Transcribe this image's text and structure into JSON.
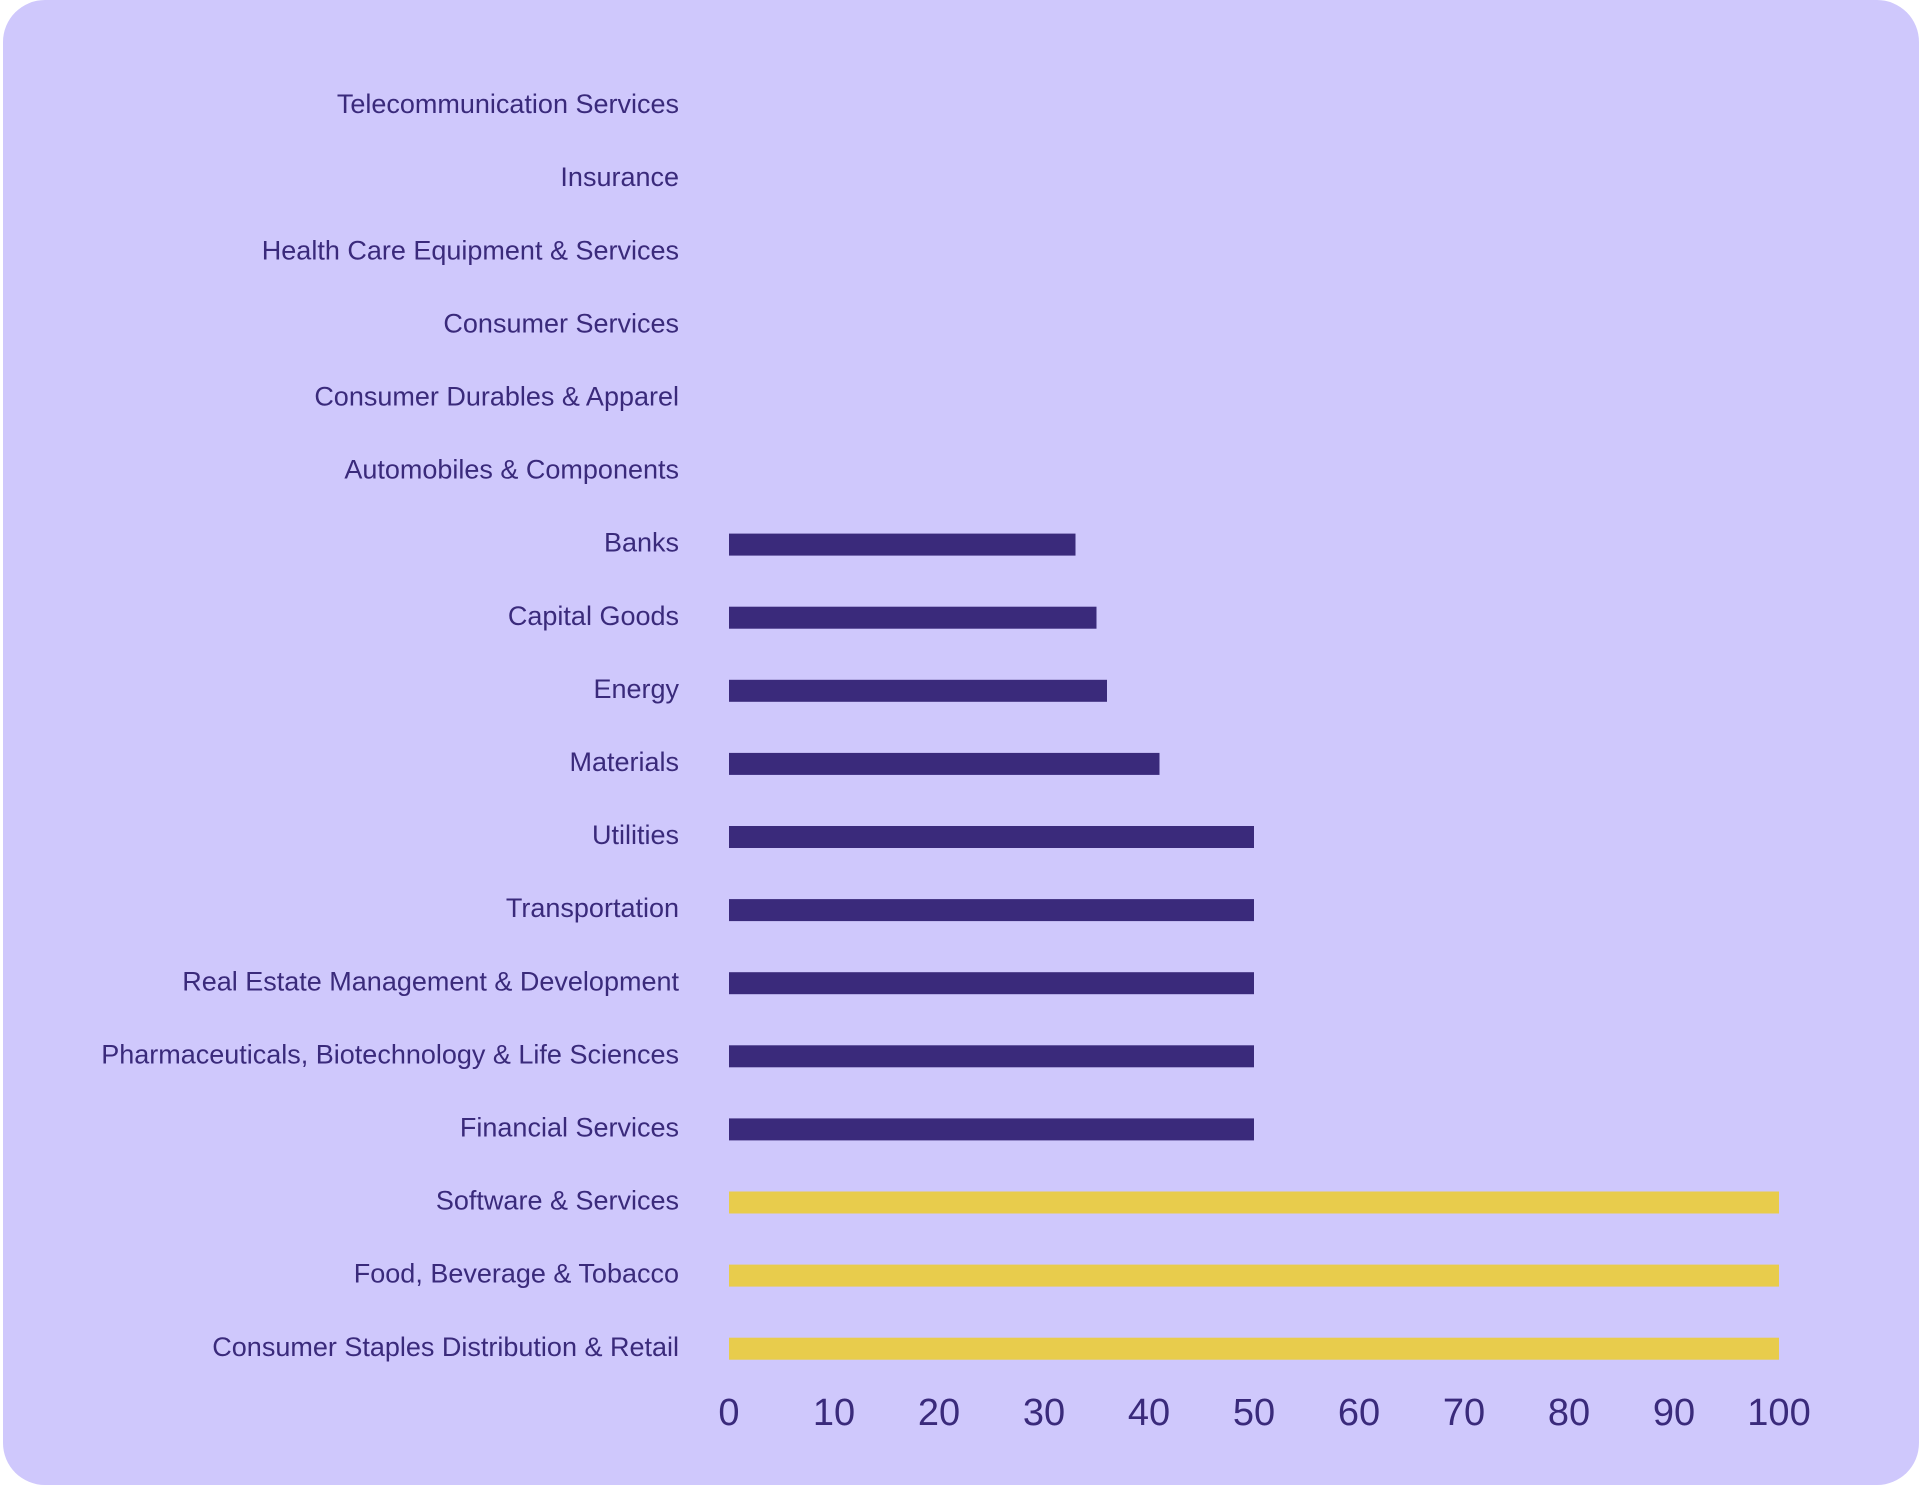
{
  "chart_data": {
    "type": "bar",
    "orientation": "horizontal",
    "title": "",
    "xlabel": "",
    "ylabel": "",
    "xlim": [
      0,
      100
    ],
    "xticks": [
      "0",
      "10",
      "20",
      "30",
      "40",
      "50",
      "60",
      "70",
      "80",
      "90",
      "100"
    ],
    "grid": false,
    "categories": [
      "Telecommunication Services",
      "Insurance",
      "Health Care Equipment & Services",
      "Consumer Services",
      "Consumer Durables & Apparel",
      "Automobiles & Components",
      "Banks",
      "Capital Goods",
      "Energy",
      "Materials",
      "Utilities",
      "Transportation",
      "Real Estate Management & Development",
      "Pharmaceuticals, Biotechnology & Life Sciences",
      "Financial Services",
      "Software & Services",
      "Food, Beverage & Tobacco",
      "Consumer Staples Distribution & Retail"
    ],
    "values": [
      0,
      0,
      0,
      0,
      0,
      0,
      33,
      35,
      36,
      41,
      50,
      50,
      50,
      50,
      50,
      100,
      100,
      100
    ],
    "highlighted": [
      false,
      false,
      false,
      false,
      false,
      false,
      false,
      false,
      false,
      false,
      false,
      false,
      false,
      false,
      false,
      true,
      true,
      true
    ]
  },
  "colors": {
    "background": "#cfc8fc",
    "bar": "#3a2a7b",
    "bar_highlight": "#e8cc4c",
    "text": "#3a2a7b"
  }
}
